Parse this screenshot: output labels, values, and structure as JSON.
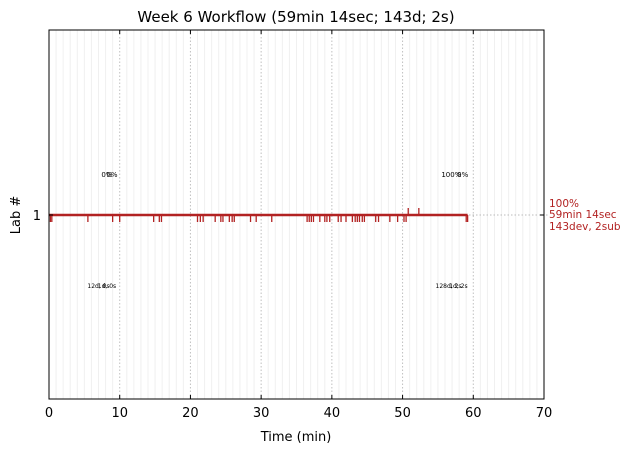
{
  "chart_data": {
    "type": "line",
    "title": "Week 6 Workflow (59min 14sec; 143d; 2s)",
    "xlabel": "Time (min)",
    "ylabel": "Lab #",
    "xlim": [
      0,
      70
    ],
    "x_ticks": [
      "0",
      "10",
      "20",
      "30",
      "40",
      "50",
      "60",
      "70"
    ],
    "x_tick_values": [
      0,
      10,
      20,
      30,
      40,
      50,
      60,
      70
    ],
    "y_ticks": [
      "1"
    ],
    "grid": "vertical dotted every 10 min, faint minor every 1 min",
    "color": "#b22222",
    "series": [
      {
        "lab": 1,
        "start": 0.0,
        "end": 59.2,
        "dev_events_min": [
          0.2,
          0.4,
          5.5,
          9.0,
          10.0,
          14.8,
          15.6,
          15.9,
          21.0,
          21.4,
          21.8,
          23.5,
          24.3,
          24.6,
          25.5,
          25.9,
          26.2,
          28.5,
          29.3,
          31.5,
          36.5,
          36.8,
          37.1,
          37.4,
          38.3,
          39.0,
          39.3,
          39.7,
          40.9,
          41.3,
          42.0,
          42.9,
          43.3,
          43.6,
          43.9,
          44.3,
          44.6,
          46.2,
          46.6,
          48.2,
          49.3,
          50.2,
          50.5,
          59.0,
          59.2
        ],
        "sub_events_min": [
          50.8,
          52.3
        ]
      }
    ],
    "upper_labels": [
      {
        "x": 8.2,
        "text": "0%"
      },
      {
        "x": 8.9,
        "text": "0%"
      },
      {
        "x": 56.9,
        "text": "100%"
      },
      {
        "x": 58.5,
        "text": "0%"
      }
    ],
    "lower_labels": [
      {
        "x": 7.0,
        "text": "12d, 0s"
      },
      {
        "x": 8.2,
        "text": "1d, 0s"
      },
      {
        "x": 56.5,
        "text": "128d, 2s"
      },
      {
        "x": 57.9,
        "text": "1d, 2s"
      }
    ],
    "side_label": {
      "line1": "100%",
      "line2": "59min 14sec",
      "line3": "143dev, 2sub"
    }
  }
}
